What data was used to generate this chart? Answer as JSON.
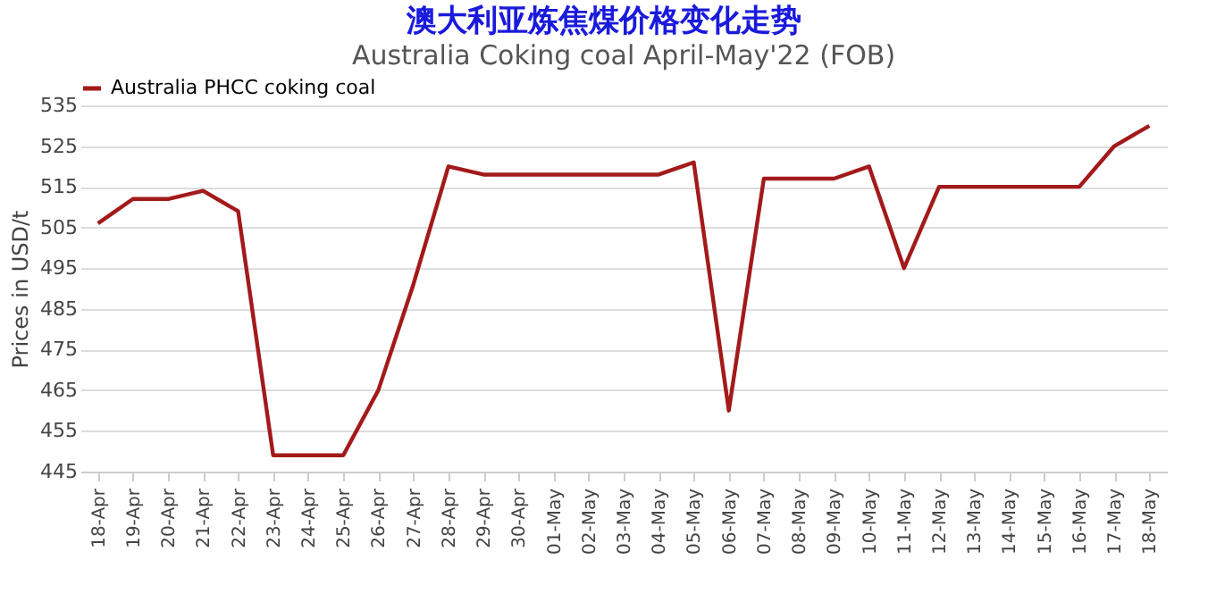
{
  "chart_data": {
    "type": "line",
    "title": "澳大利亚炼焦煤价格变化走势",
    "subtitle": "Australia Coking coal April-May'22 (FOB)",
    "ylabel": "Prices in USD/t",
    "categories": [
      "18-Apr",
      "19-Apr",
      "20-Apr",
      "21-Apr",
      "22-Apr",
      "23-Apr",
      "24-Apr",
      "25-Apr",
      "26-Apr",
      "27-Apr",
      "28-Apr",
      "29-Apr",
      "30-Apr",
      "01-May",
      "02-May",
      "03-May",
      "04-May",
      "05-May",
      "06-May",
      "07-May",
      "08-May",
      "09-May",
      "10-May",
      "11-May",
      "12-May",
      "13-May",
      "14-May",
      "15-May",
      "16-May",
      "17-May",
      "18-May"
    ],
    "series": [
      {
        "name": "Australia PHCC coking coal",
        "color": "#a31a1a",
        "values": [
          506,
          512,
          512,
          514,
          509,
          449,
          449,
          449,
          465,
          491,
          520,
          518,
          518,
          518,
          518,
          518,
          518,
          521,
          460,
          517,
          517,
          517,
          520,
          495,
          515,
          515,
          515,
          515,
          515,
          525,
          530
        ]
      }
    ],
    "ylim": [
      445,
      535
    ],
    "yticks": [
      445,
      455,
      465,
      475,
      485,
      495,
      505,
      515,
      525,
      535
    ],
    "grid": "y",
    "legend": "top",
    "marker": "none",
    "line_style": "solid"
  }
}
